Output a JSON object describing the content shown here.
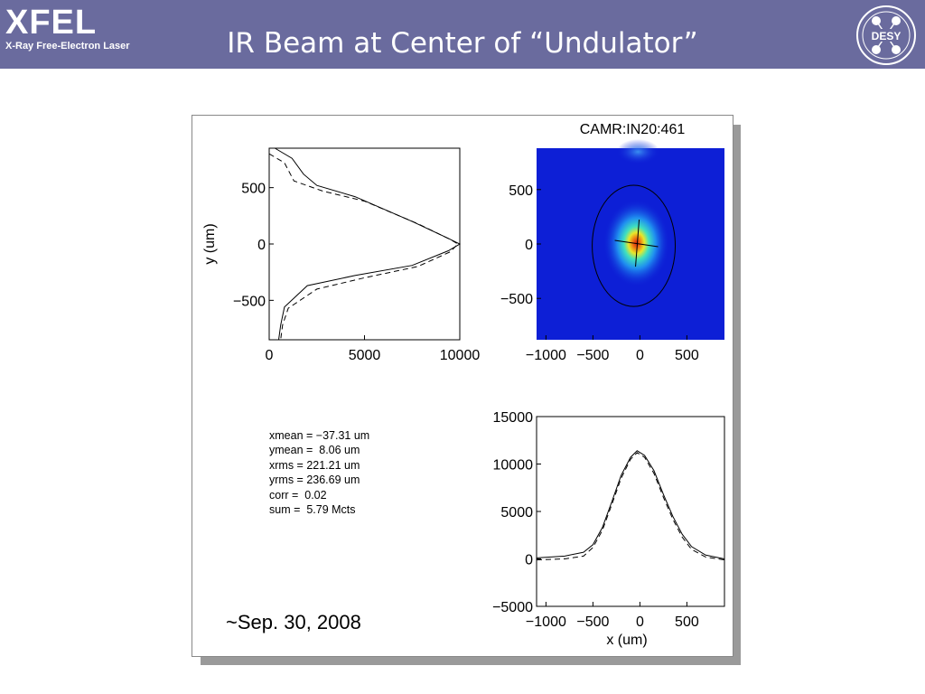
{
  "header": {
    "logo_text": "XFEL",
    "logo_subtitle": "X-Ray Free-Electron Laser",
    "title": "IR Beam at Center of “Undulator”",
    "desy_logo_text": "DESY",
    "bg_color": "#6a6b9e"
  },
  "figure": {
    "camera_label": "CAMR:IN20:461",
    "stats": [
      "xmean = −37.31 um",
      "ymean =  8.06 um",
      "xrms = 221.21 um",
      "yrms = 236.69 um",
      "corr =  0.02",
      "sum =  5.79 Mcts"
    ],
    "date": "~Sep. 30, 2008"
  },
  "chart_data": [
    {
      "type": "line",
      "name": "y-profile",
      "xlabel": "",
      "ylabel": "y  (um)",
      "xlim": [
        0,
        10000
      ],
      "ylim": [
        -850,
        850
      ],
      "xticks": [
        "0",
        "5000",
        "10000"
      ],
      "yticks": [
        {
          "value": 500,
          "label": "500"
        },
        {
          "value": 0,
          "label": "0"
        },
        {
          "value": -500,
          "label": "−500"
        }
      ],
      "series": [
        {
          "style": "solid",
          "points": [
            [
              300,
              850
            ],
            [
              1200,
              760
            ],
            [
              1800,
              620
            ],
            [
              2500,
              520
            ],
            [
              4500,
              420
            ],
            [
              7500,
              200
            ],
            [
              9400,
              50
            ],
            [
              10000,
              0
            ],
            [
              9400,
              -60
            ],
            [
              7500,
              -190
            ],
            [
              4500,
              -280
            ],
            [
              2000,
              -370
            ],
            [
              800,
              -560
            ],
            [
              600,
              -720
            ],
            [
              500,
              -850
            ]
          ]
        },
        {
          "style": "dashed",
          "points": [
            [
              0,
              800
            ],
            [
              800,
              720
            ],
            [
              1300,
              560
            ],
            [
              2800,
              470
            ],
            [
              5000,
              380
            ],
            [
              7800,
              180
            ],
            [
              9500,
              40
            ],
            [
              9900,
              0
            ],
            [
              9500,
              -70
            ],
            [
              7800,
              -200
            ],
            [
              5000,
              -300
            ],
            [
              2500,
              -400
            ],
            [
              1000,
              -570
            ],
            [
              700,
              -720
            ],
            [
              600,
              -850
            ]
          ]
        }
      ]
    },
    {
      "type": "heatmap",
      "name": "beam-image",
      "xticks": [
        "−1000",
        "−500",
        "0",
        "500"
      ],
      "yticks": [
        {
          "value": 500,
          "label": "500"
        },
        {
          "value": 0,
          "label": "0"
        },
        {
          "value": -500,
          "label": "−500"
        }
      ],
      "xlim": [
        -1100,
        900
      ],
      "ylim": [
        -880,
        880
      ],
      "center": [
        -37,
        8
      ],
      "rms": [
        221,
        237
      ],
      "colors": [
        "#0d1fd6",
        "#1f8ef0",
        "#3fe0c0",
        "#e8e82a",
        "#f07a12",
        "#d62010"
      ]
    },
    {
      "type": "line",
      "name": "x-profile",
      "xlabel": "x  (um)",
      "ylabel": "",
      "xlim": [
        -1100,
        900
      ],
      "ylim": [
        -5000,
        15000
      ],
      "xticks": [
        {
          "value": -1000,
          "label": "−1000"
        },
        {
          "value": -500,
          "label": "−500"
        },
        {
          "value": 0,
          "label": "0"
        },
        {
          "value": 500,
          "label": "500"
        }
      ],
      "yticks": [
        {
          "value": 15000,
          "label": "15000"
        },
        {
          "value": 10000,
          "label": "10000"
        },
        {
          "value": 5000,
          "label": "5000"
        },
        {
          "value": 0,
          "label": "0"
        },
        {
          "value": -5000,
          "label": "−5000"
        }
      ],
      "series": [
        {
          "style": "solid",
          "points": [
            [
              -1100,
              100
            ],
            [
              -800,
              300
            ],
            [
              -600,
              700
            ],
            [
              -500,
              1500
            ],
            [
              -400,
              3300
            ],
            [
              -300,
              6000
            ],
            [
              -200,
              8800
            ],
            [
              -100,
              10700
            ],
            [
              -30,
              11400
            ],
            [
              50,
              10900
            ],
            [
              150,
              9300
            ],
            [
              250,
              6800
            ],
            [
              350,
              4500
            ],
            [
              450,
              2600
            ],
            [
              550,
              1300
            ],
            [
              700,
              400
            ],
            [
              900,
              0
            ]
          ]
        },
        {
          "style": "dashed",
          "points": [
            [
              -1100,
              -100
            ],
            [
              -800,
              0
            ],
            [
              -600,
              300
            ],
            [
              -500,
              1200
            ],
            [
              -400,
              3000
            ],
            [
              -300,
              5700
            ],
            [
              -200,
              8500
            ],
            [
              -100,
              10500
            ],
            [
              -30,
              11200
            ],
            [
              50,
              10700
            ],
            [
              150,
              9000
            ],
            [
              250,
              6500
            ],
            [
              350,
              4200
            ],
            [
              450,
              2300
            ],
            [
              550,
              1000
            ],
            [
              700,
              200
            ],
            [
              900,
              -100
            ]
          ]
        }
      ]
    }
  ]
}
